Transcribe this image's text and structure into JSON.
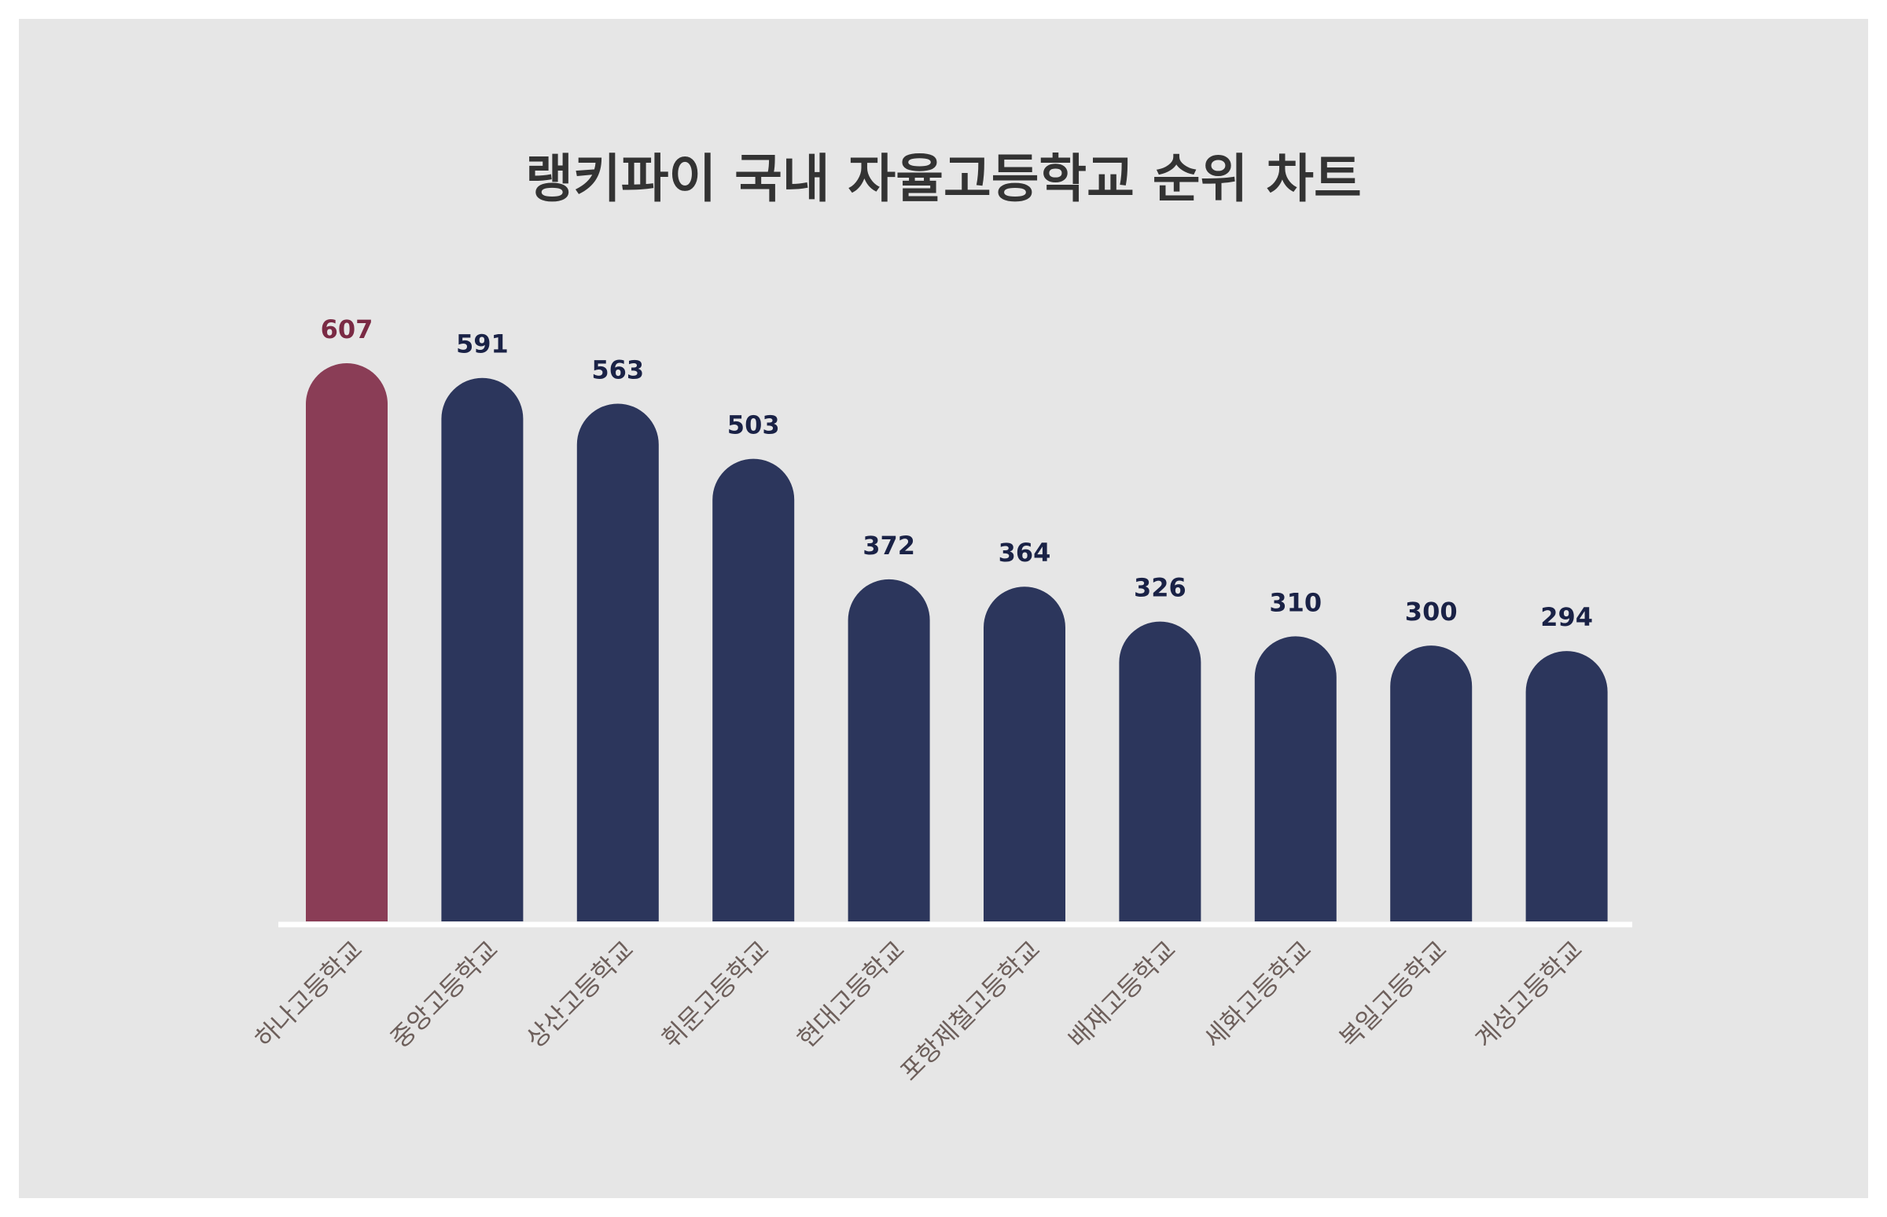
{
  "chart_data": {
    "type": "bar",
    "title": "랭키파이 국내 자율고등학교 순위 차트",
    "categories": [
      "하나고등학교",
      "중앙고등학교",
      "상산고등학교",
      "휘문고등학교",
      "현대고등학교",
      "포항제철고등학교",
      "배재고등학교",
      "세화고등학교",
      "복일고등학교",
      "계성고등학교"
    ],
    "values": [
      607,
      591,
      563,
      503,
      372,
      364,
      326,
      310,
      300,
      294
    ],
    "xlabel": "",
    "ylabel": "",
    "ylim": [
      0,
      607
    ],
    "grid": false,
    "legend": "none",
    "colors": {
      "highlight": "#8a3d56",
      "bar": "#2c365c",
      "highlight_label": "#7a2a44",
      "value_label": "#1a2246",
      "axis": "#ffffff"
    }
  }
}
